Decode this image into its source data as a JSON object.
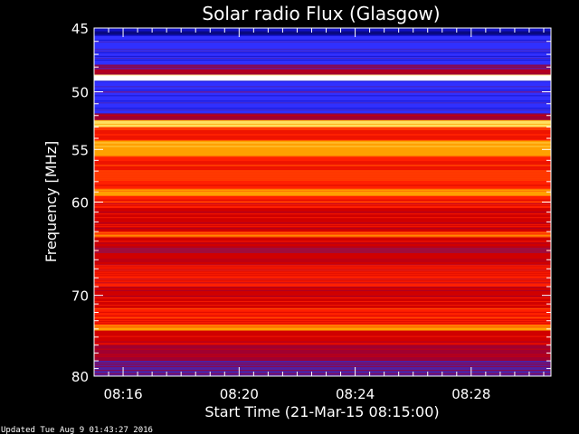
{
  "chart_data": {
    "type": "heatmap",
    "title": "Solar radio Flux (Glasgow)",
    "xlabel": "Start Time (21-Mar-15 08:15:00)",
    "ylabel": "Frequency [MHz]",
    "x_start": "08:15:00",
    "xlim_minutes": [
      0,
      15.75
    ],
    "ylim": [
      45,
      80
    ],
    "y_scale": "log",
    "y_inverted": true,
    "xticks": [
      {
        "label": "08:16",
        "minute": 1
      },
      {
        "label": "08:20",
        "minute": 5
      },
      {
        "label": "08:24",
        "minute": 9
      },
      {
        "label": "08:28",
        "minute": 13
      }
    ],
    "yticks_major": [
      45,
      50,
      55,
      60,
      70,
      80
    ],
    "yticks_minor": [
      46,
      47,
      48,
      49,
      51,
      52,
      53,
      54,
      56,
      57,
      58,
      59,
      61,
      62,
      63,
      64,
      65,
      66,
      67,
      68,
      69,
      71,
      72,
      73,
      74,
      75,
      76,
      77,
      78,
      79
    ],
    "colormap": [
      "#00002a",
      "#1010c0",
      "#3030ff",
      "#5020a0",
      "#a00030",
      "#d00000",
      "#ff2000",
      "#ff6000",
      "#ffa000",
      "#ffe060",
      "#ffffff"
    ],
    "frequency_bands": [
      {
        "from": 45.0,
        "to": 45.6,
        "level": 0.1
      },
      {
        "from": 45.6,
        "to": 47.8,
        "level": 0.22
      },
      {
        "from": 47.8,
        "to": 48.6,
        "level": 0.35
      },
      {
        "from": 48.6,
        "to": 49.1,
        "level": 1.0
      },
      {
        "from": 49.1,
        "to": 51.8,
        "level": 0.22
      },
      {
        "from": 51.8,
        "to": 52.4,
        "level": 0.4
      },
      {
        "from": 52.4,
        "to": 53.0,
        "level": 0.85
      },
      {
        "from": 53.0,
        "to": 54.2,
        "level": 0.62
      },
      {
        "from": 54.2,
        "to": 55.6,
        "level": 0.8
      },
      {
        "from": 55.6,
        "to": 58.7,
        "level": 0.6
      },
      {
        "from": 58.7,
        "to": 59.4,
        "level": 0.78
      },
      {
        "from": 59.4,
        "to": 60.6,
        "level": 0.58
      },
      {
        "from": 60.6,
        "to": 63.0,
        "level": 0.5
      },
      {
        "from": 63.0,
        "to": 63.6,
        "level": 0.7
      },
      {
        "from": 63.6,
        "to": 66.5,
        "level": 0.45
      },
      {
        "from": 66.5,
        "to": 69.0,
        "level": 0.55
      },
      {
        "from": 69.0,
        "to": 71.5,
        "level": 0.52
      },
      {
        "from": 71.5,
        "to": 73.5,
        "level": 0.6
      },
      {
        "from": 73.5,
        "to": 74.2,
        "level": 0.78
      },
      {
        "from": 74.2,
        "to": 76.0,
        "level": 0.5
      },
      {
        "from": 76.0,
        "to": 78.0,
        "level": 0.4
      },
      {
        "from": 78.0,
        "to": 80.0,
        "level": 0.3
      }
    ]
  },
  "footer": {
    "updated": "Updated Tue Aug  9 01:43:27 2016"
  }
}
